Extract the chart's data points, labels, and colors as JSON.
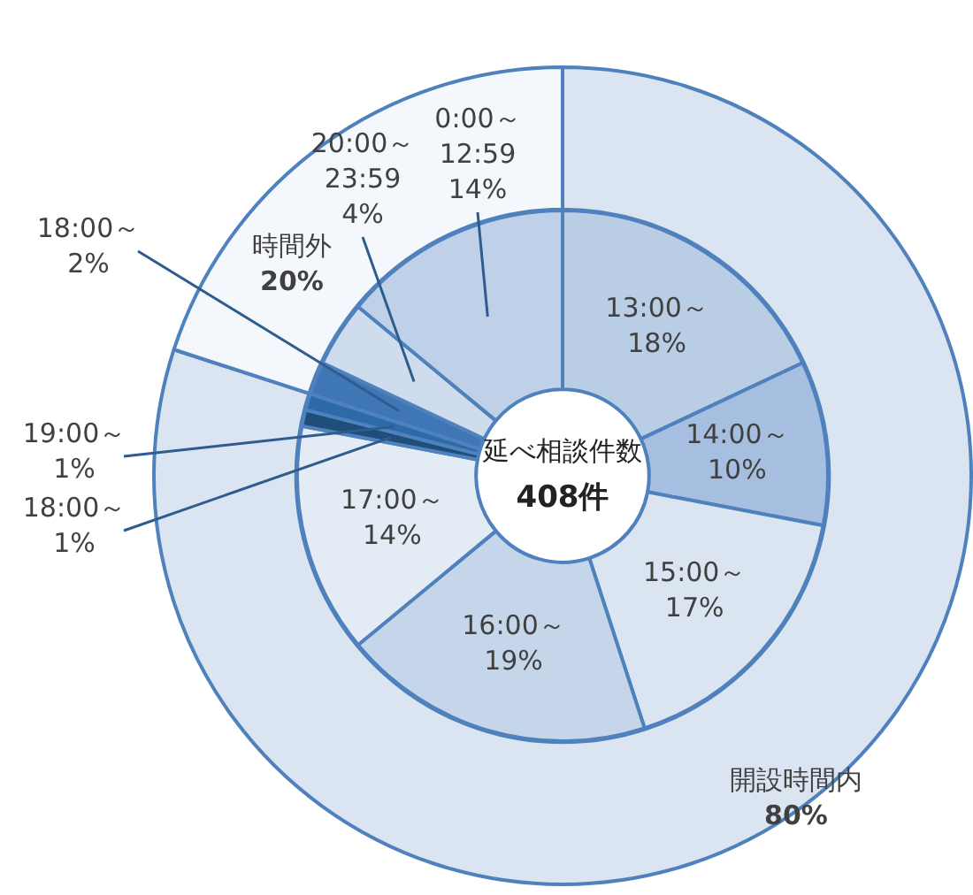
{
  "chart_data": [
    {
      "type": "donut",
      "categories": [
        "開設時間内",
        "時間外"
      ],
      "values": [
        80,
        20
      ],
      "colors": [
        "#dbe5f1",
        "#f4f7fb"
      ],
      "value_labels": [
        "80%",
        "20%"
      ]
    },
    {
      "type": "donut",
      "categories": [
        "13:00～",
        "14:00～",
        "15:00～",
        "16:00～",
        "17:00～",
        "18:00～",
        "19:00～",
        "18:00～",
        "20:00～23:59",
        "0:00～12:59"
      ],
      "values": [
        18,
        10,
        17,
        19,
        14,
        1,
        1,
        2,
        4,
        14
      ],
      "colors": [
        "#b9cde5",
        "#a6bfe0",
        "#dbe5f1",
        "#c6d6ea",
        "#e3ebf5",
        "#1f4e79",
        "#2f6aa8",
        "#3f77b6",
        "#cfdcee",
        "#bfd1e8"
      ],
      "value_labels": [
        "18%",
        "10%",
        "17%",
        "19%",
        "14%",
        "1%",
        "1%",
        "2%",
        "4%",
        "14%"
      ],
      "annotations": [
        "延べ相談件数",
        "408件"
      ]
    }
  ]
}
